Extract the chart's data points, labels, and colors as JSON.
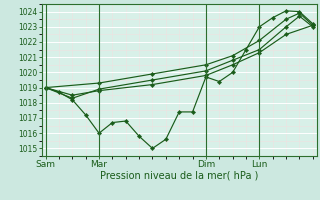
{
  "title": "",
  "xlabel": "Pression niveau de la mer( hPa )",
  "ylabel": "",
  "bg_color": "#cce8e0",
  "plot_bg_color": "#d8f0e8",
  "grid_color": "#ffffff",
  "grid_minor_color": "#f0e0e0",
  "line_color": "#1a5c1a",
  "spine_color": "#2d6e2d",
  "ylim": [
    1014.5,
    1024.5
  ],
  "yticks": [
    1015,
    1016,
    1017,
    1018,
    1019,
    1020,
    1021,
    1022,
    1023,
    1024
  ],
  "day_labels": [
    "Sam",
    "Mar",
    "Dim",
    "Lun"
  ],
  "day_positions": [
    0,
    4,
    12,
    16
  ],
  "xlim": [
    -0.3,
    20.3
  ],
  "series1": [
    [
      0,
      1019.0
    ],
    [
      1,
      1018.7
    ],
    [
      2,
      1018.2
    ],
    [
      3,
      1017.2
    ],
    [
      4,
      1016.0
    ],
    [
      5,
      1016.7
    ],
    [
      6,
      1016.8
    ],
    [
      7,
      1015.8
    ],
    [
      8,
      1015.0
    ],
    [
      9,
      1015.6
    ],
    [
      10,
      1017.4
    ],
    [
      11,
      1017.4
    ],
    [
      12,
      1019.7
    ],
    [
      13,
      1019.4
    ],
    [
      14,
      1020.0
    ],
    [
      15,
      1021.5
    ],
    [
      16,
      1023.0
    ],
    [
      17,
      1023.6
    ],
    [
      18,
      1024.05
    ],
    [
      19,
      1024.0
    ],
    [
      20,
      1023.2
    ]
  ],
  "series2": [
    [
      0,
      1019.0
    ],
    [
      2,
      1018.5
    ],
    [
      4,
      1018.8
    ],
    [
      8,
      1019.2
    ],
    [
      12,
      1019.8
    ],
    [
      14,
      1020.5
    ],
    [
      16,
      1021.3
    ],
    [
      18,
      1022.5
    ],
    [
      20,
      1023.1
    ]
  ],
  "series3": [
    [
      0,
      1019.0
    ],
    [
      2,
      1018.3
    ],
    [
      4,
      1018.9
    ],
    [
      8,
      1019.5
    ],
    [
      12,
      1020.1
    ],
    [
      14,
      1020.8
    ],
    [
      16,
      1021.5
    ],
    [
      18,
      1023.0
    ],
    [
      19,
      1023.7
    ],
    [
      20,
      1023.0
    ]
  ],
  "series4": [
    [
      0,
      1019.0
    ],
    [
      4,
      1019.3
    ],
    [
      8,
      1019.9
    ],
    [
      12,
      1020.5
    ],
    [
      14,
      1021.1
    ],
    [
      16,
      1022.1
    ],
    [
      18,
      1023.5
    ],
    [
      19,
      1023.9
    ],
    [
      20,
      1023.1
    ]
  ]
}
